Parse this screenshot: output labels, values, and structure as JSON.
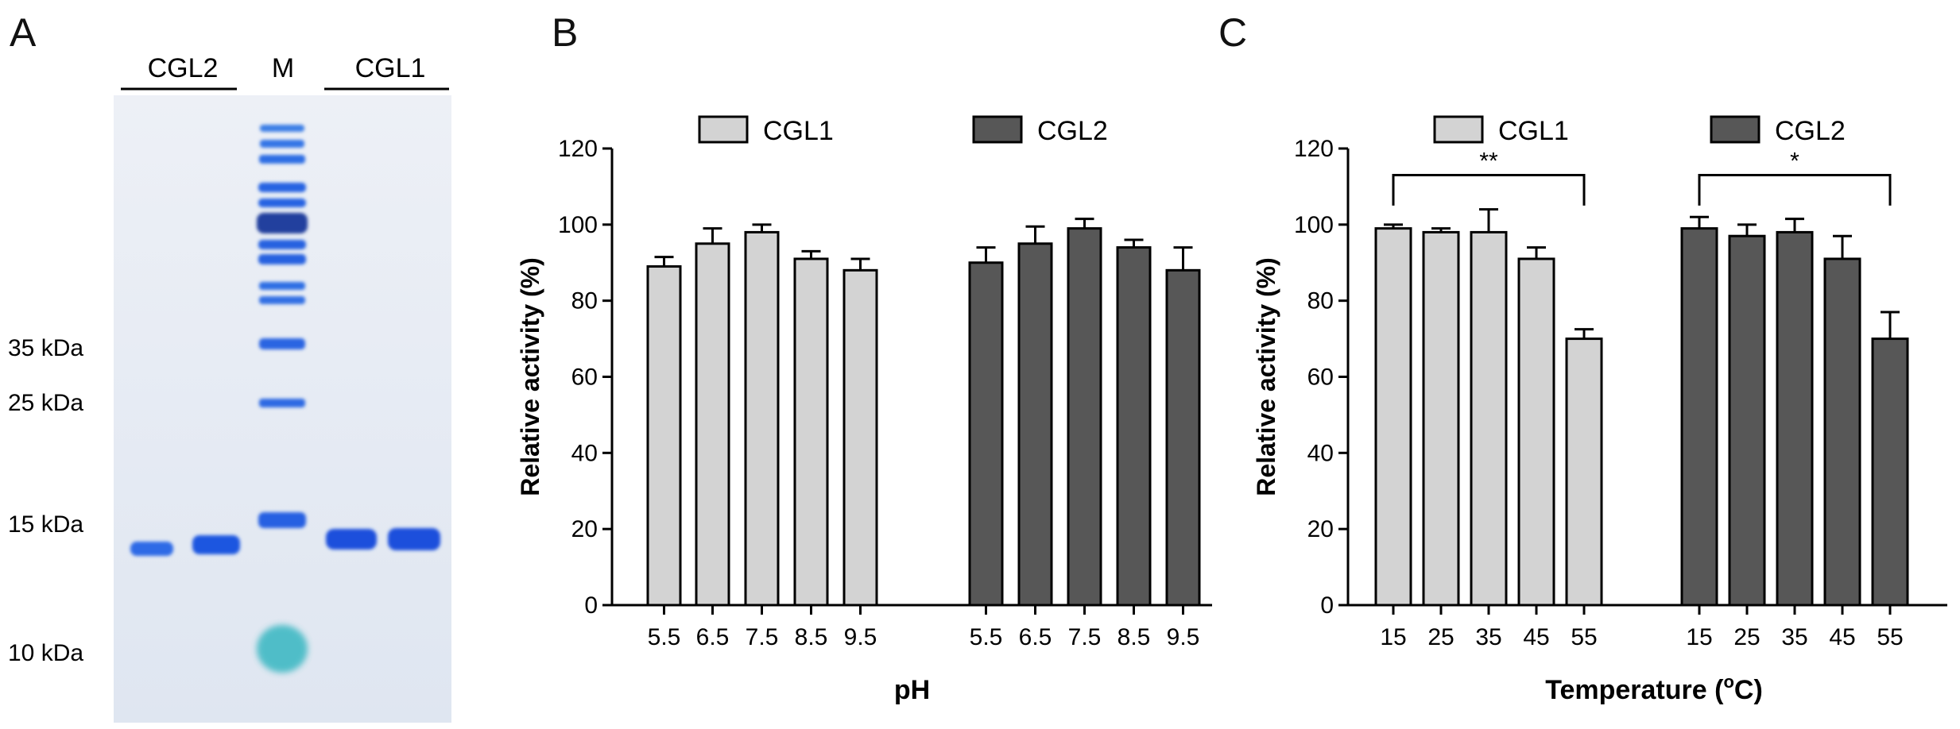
{
  "panels": {
    "a": {
      "letter": "A"
    },
    "b": {
      "letter": "B"
    },
    "c": {
      "letter": "C"
    }
  },
  "gel": {
    "lane_groups": {
      "left": "CGL2",
      "marker": "M",
      "right": "CGL1"
    },
    "kda_labels": [
      "35 kDa",
      "25 kDa",
      "15 kDa",
      "10 kDa"
    ],
    "colors": {
      "background": "#e4eaf4",
      "band": "#1f57e0",
      "marker_low": "#3fb9c4"
    }
  },
  "colors": {
    "cgl1": "#d3d3d3",
    "cgl2": "#575757",
    "stroke": "#000000"
  },
  "chart_data": [
    {
      "type": "bar",
      "title": "",
      "xlabel": "pH",
      "ylabel": "Relative activity (%)",
      "ylim": [
        0,
        120
      ],
      "yticks": [
        "0",
        "20",
        "40",
        "60",
        "80",
        "100",
        "120"
      ],
      "categories": [
        "5.5",
        "6.5",
        "7.5",
        "8.5",
        "9.5"
      ],
      "legend": "top",
      "series": [
        {
          "name": "CGL1",
          "values": [
            89,
            95,
            98,
            91,
            88
          ],
          "errors": [
            2.5,
            4,
            2,
            2,
            3
          ]
        },
        {
          "name": "CGL2",
          "values": [
            90,
            95,
            99,
            94,
            88
          ],
          "errors": [
            4,
            4.5,
            2.5,
            2,
            6
          ]
        }
      ],
      "annotations": []
    },
    {
      "type": "bar",
      "title": "",
      "xlabel": "Temperature (°C)",
      "xlabel_parts": [
        "Temperature (",
        "o",
        "C)"
      ],
      "ylabel": "Relative activity (%)",
      "ylim": [
        0,
        120
      ],
      "yticks": [
        "0",
        "20",
        "40",
        "60",
        "80",
        "100",
        "120"
      ],
      "categories": [
        "15",
        "25",
        "35",
        "45",
        "55"
      ],
      "legend": "top",
      "series": [
        {
          "name": "CGL1",
          "values": [
            99,
            98,
            98,
            91,
            70
          ],
          "errors": [
            1,
            1,
            6,
            3,
            2.5
          ]
        },
        {
          "name": "CGL2",
          "values": [
            99,
            97,
            98,
            91,
            70
          ],
          "errors": [
            3,
            3,
            3.5,
            6,
            7
          ]
        }
      ],
      "annotations": [
        {
          "series": "CGL1",
          "from": "15",
          "to": "55",
          "text": "**"
        },
        {
          "series": "CGL2",
          "from": "15",
          "to": "55",
          "text": "*"
        }
      ]
    }
  ]
}
